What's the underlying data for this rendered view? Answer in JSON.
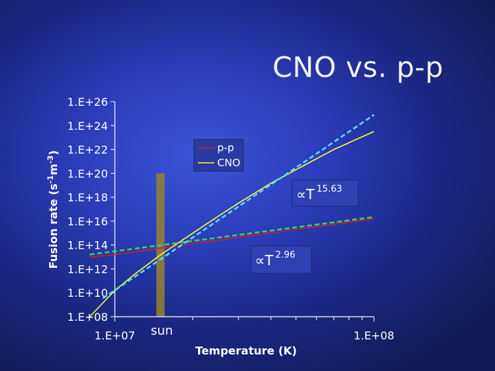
{
  "slide": {
    "title": "CNO vs. p-p"
  },
  "chart_data": {
    "type": "line",
    "title": "CNO vs. p-p",
    "xlabel": "Temperature (K)",
    "ylabel": "Fusion rate (s-1m-3)",
    "ylabel_parts": {
      "base": "Fusion rate (s",
      "sup1": "-1",
      "mid": "m",
      "sup2": "-3",
      "end": ")"
    },
    "x_scale": "log",
    "y_scale": "log",
    "xlim": [
      10000000,
      100000000
    ],
    "ylim": [
      100000000.0,
      1e+26
    ],
    "x_tick_labels": [
      {
        "value": 10000000,
        "label": "1.E+07"
      },
      {
        "value": 100000000,
        "label": "1.E+08"
      }
    ],
    "y_tick_labels": [
      {
        "value": 100000000.0,
        "label": "1.E+08"
      },
      {
        "value": 10000000000.0,
        "label": "1.E+10"
      },
      {
        "value": 1000000000000.0,
        "label": "1.E+12"
      },
      {
        "value": 100000000000000.0,
        "label": "1.E+14"
      },
      {
        "value": 1e+16,
        "label": "1.E+16"
      },
      {
        "value": 1e+18,
        "label": "1.E+18"
      },
      {
        "value": 1e+20,
        "label": "1.E+20"
      },
      {
        "value": 1e+22,
        "label": "1.E+22"
      },
      {
        "value": 1e+24,
        "label": "1.E+24"
      },
      {
        "value": 1e+26,
        "label": "1.E+26"
      }
    ],
    "series": [
      {
        "name": "p-p",
        "color": "#cc2222",
        "style": "solid",
        "x": [
          8000000,
          10000000,
          15000000,
          20000000,
          30000000,
          50000000,
          70000000,
          100000000
        ],
        "y": [
          10000000000000.0,
          16000000000000.0,
          55000000000000.0,
          130000000000000.0,
          440000000000000.0,
          2000000000000000.0,
          5400000000000000.0,
          1.6e+16
        ]
      },
      {
        "name": "CNO",
        "color": "#ffff33",
        "style": "solid",
        "x": [
          8000000,
          10000000,
          12000000,
          15000000,
          20000000,
          25000000,
          30000000,
          40000000,
          50000000,
          70000000,
          100000000
        ],
        "y": [
          100000000.0,
          16000000000.0,
          400000000000.0,
          15000000000000.0,
          1000000000000000.0,
          2.5e+16,
          3.2e+17,
          1.5e+19,
          2e+20,
          1e+22,
          3.2e+23
        ]
      },
      {
        "style": "dashed",
        "color": "#55ddee",
        "x": [
          9000000,
          100000000
        ],
        "y": [
          3500000000.0,
          8e+24
        ]
      },
      {
        "style": "dashed",
        "color": "#44cc55",
        "x": [
          8000000,
          100000000
        ],
        "y": [
          16000000000000.0,
          2.2e+16
        ]
      }
    ],
    "sun": {
      "label": "sun",
      "x": 15000000,
      "color": "#8c7d3c"
    },
    "annotations": [
      {
        "prefix": "∝T",
        "exponent": "15.63"
      },
      {
        "prefix": "∝T",
        "exponent": "2.96"
      }
    ],
    "legend": {
      "position": "top-center"
    },
    "grid": false
  }
}
